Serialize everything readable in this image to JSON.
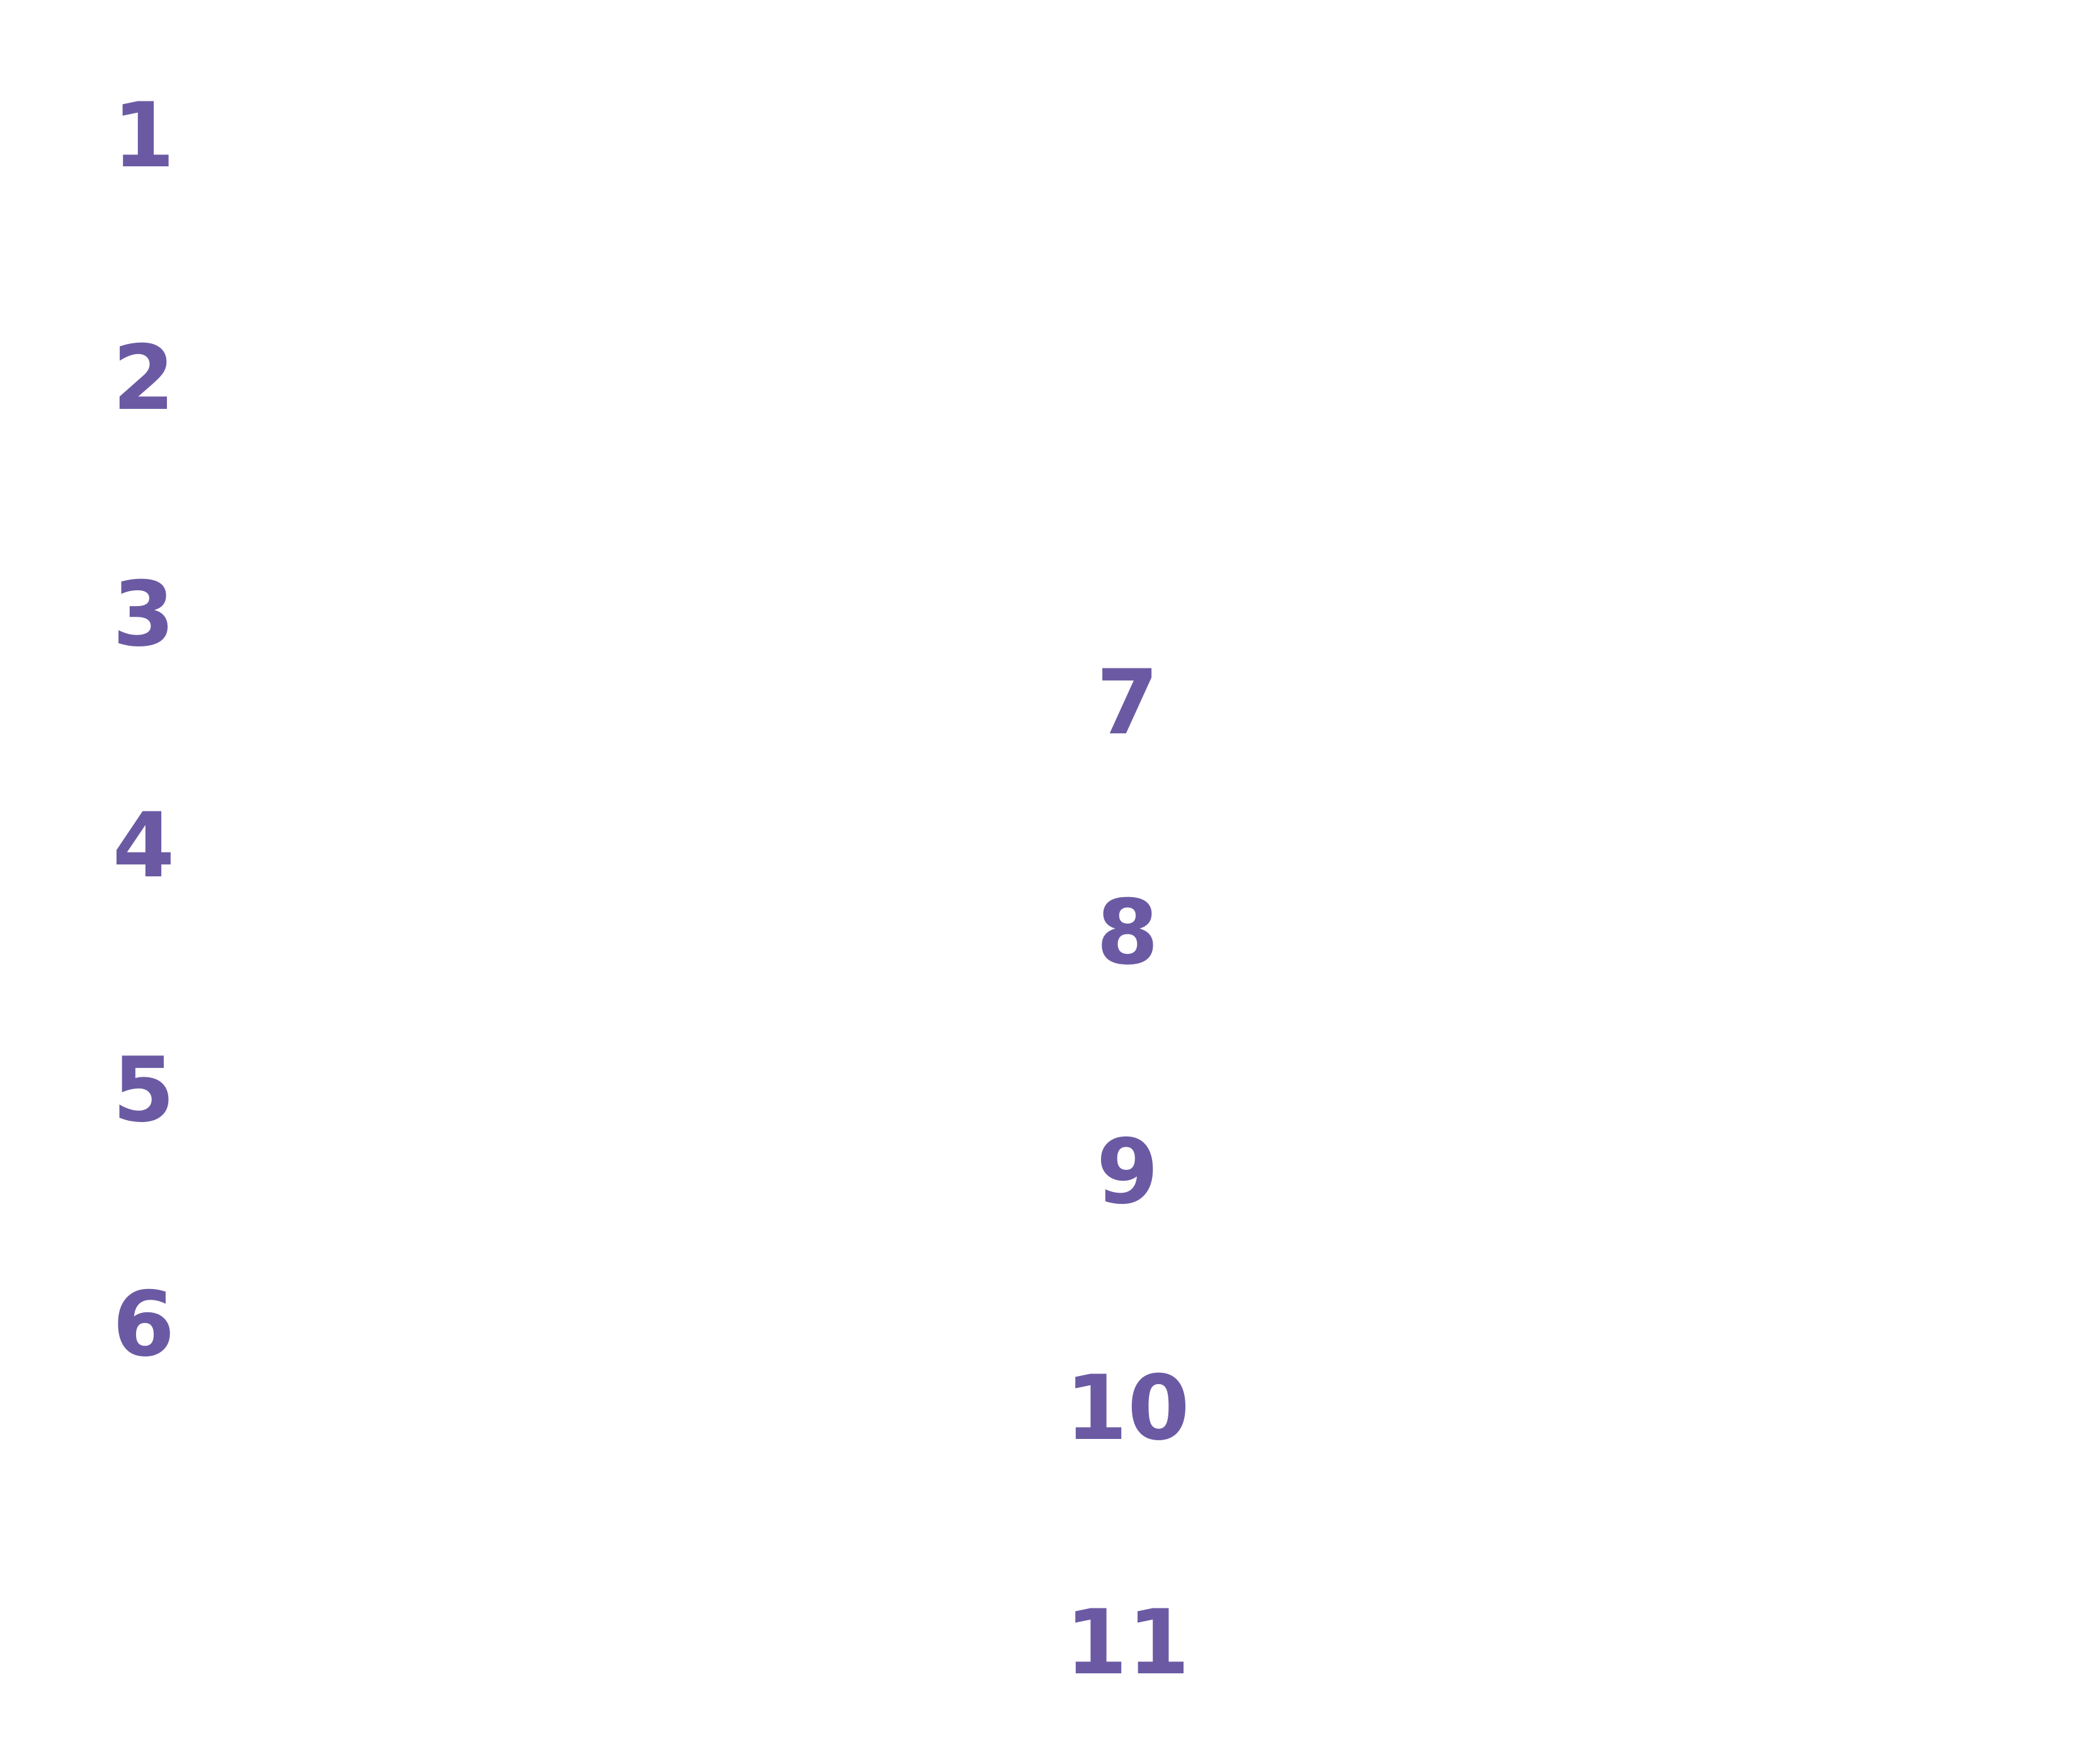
{
  "accent_color": "#6b5aa3",
  "left_column": {
    "numbers": [
      "1",
      "2",
      "3",
      "4",
      "5",
      "6"
    ]
  },
  "right_column": {
    "numbers": [
      "7",
      "8",
      "9",
      "10",
      "11"
    ]
  }
}
